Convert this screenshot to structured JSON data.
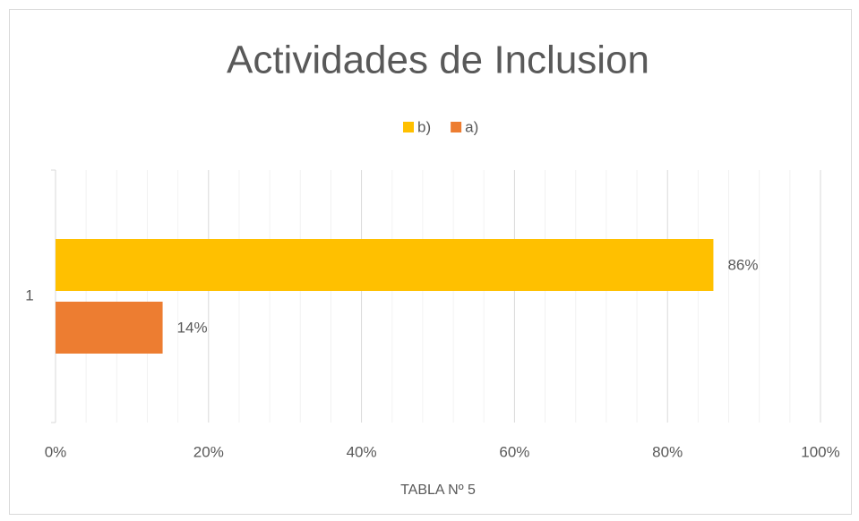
{
  "chart_data": {
    "type": "hbar",
    "title": "Actividades de Inclusion",
    "categories": [
      "1"
    ],
    "series": [
      {
        "name": "b)",
        "color": "#ffc000",
        "values": [
          86
        ],
        "value_labels": [
          "86%"
        ]
      },
      {
        "name": "a)",
        "color": "#ed7d31",
        "values": [
          14
        ],
        "value_labels": [
          "14%"
        ]
      }
    ],
    "xlabel": "TABLA Nº 5",
    "xlim": [
      0,
      100
    ],
    "xticks": [
      {
        "value": 0,
        "label": "0%"
      },
      {
        "value": 20,
        "label": "20%"
      },
      {
        "value": 40,
        "label": "40%"
      },
      {
        "value": 60,
        "label": "60%"
      },
      {
        "value": 80,
        "label": "80%"
      },
      {
        "value": 100,
        "label": "100%"
      }
    ],
    "xminor_ticks": [
      4,
      8,
      12,
      16,
      24,
      28,
      32,
      36,
      44,
      48,
      52,
      56,
      64,
      68,
      72,
      76,
      84,
      88,
      92,
      96
    ],
    "grid": true,
    "legend": "top"
  }
}
